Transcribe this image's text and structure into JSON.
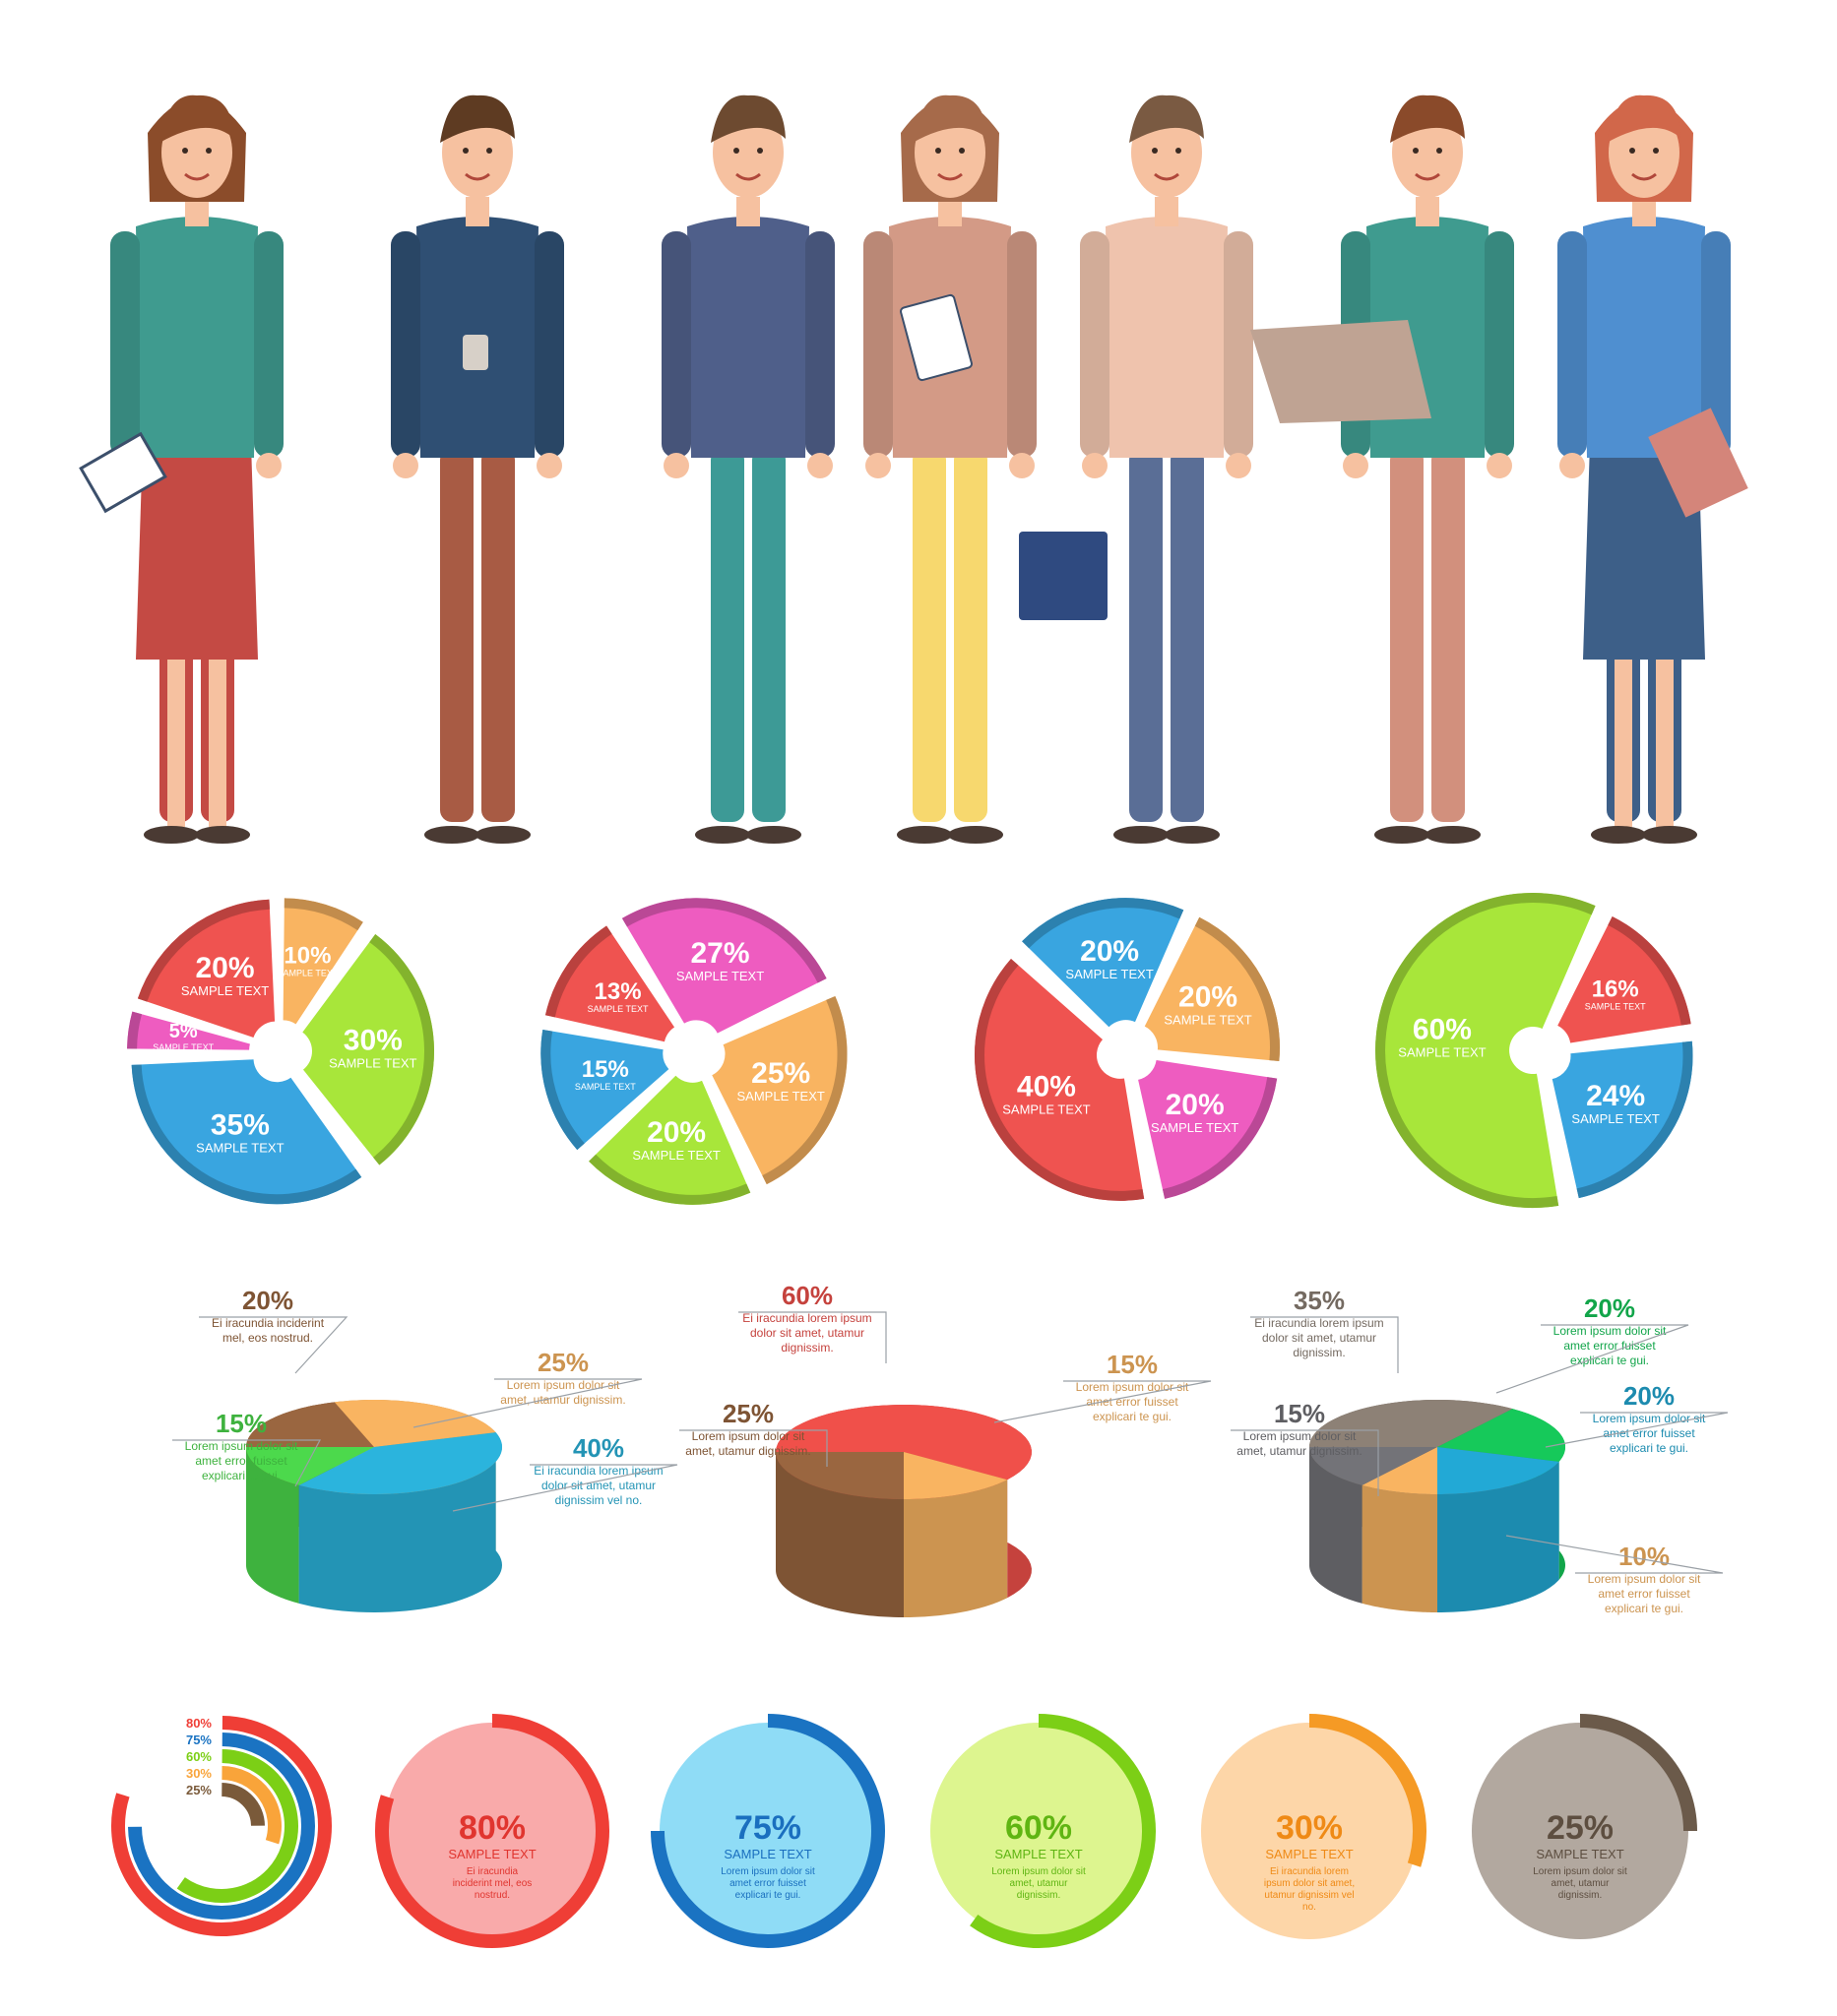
{
  "colors": {
    "red": "#ef5350",
    "red_dark": "#d32f2f",
    "orange": "#f9b461",
    "orange_dark": "#f28c18",
    "green": "#a8e63a",
    "green_dark": "#6cc51a",
    "blue": "#39a5e0",
    "blue_dark": "#1566b8",
    "pink": "#ee5cc0",
    "pink_dark": "#b7166d",
    "brown": "#9a6640",
    "brown_dark": "#6a4325",
    "grey": "#8d8176",
    "grey_dark": "#5d5249"
  },
  "people": [
    {
      "role": "woman-green-jacket",
      "skin": "#f6c1a0",
      "hair": "#8b4c2a",
      "top": "#3f9b8f",
      "bottom": "#c44a44",
      "prop": "clipboard"
    },
    {
      "role": "man-striped-sweater",
      "skin": "#f6c1a0",
      "hair": "#5e3b22",
      "top": "#2f4f73",
      "bottom": "#a85b44",
      "prop": "coffee-cup"
    },
    {
      "role": "man-suit-glasses",
      "skin": "#f6c1a0",
      "hair": "#6d4a30",
      "top": "#4f5f8a",
      "bottom": "#3d9a96",
      "prop": "none"
    },
    {
      "role": "woman-pink-jacket",
      "skin": "#f6c1a0",
      "hair": "#a66a4a",
      "top": "#d39a86",
      "bottom": "#f7d86e",
      "prop": "tablet"
    },
    {
      "role": "man-striped-vest",
      "skin": "#f6c1a0",
      "hair": "#7a5a42",
      "top": "#efc3ad",
      "bottom": "#5a6e96",
      "prop": "briefcase"
    },
    {
      "role": "man-beard-laptop",
      "skin": "#f6c1a0",
      "hair": "#8a4a2a",
      "top": "#3f9b8f",
      "bottom": "#d2907d",
      "prop": "laptop"
    },
    {
      "role": "woman-polka-blouse",
      "skin": "#f6c1a0",
      "hair": "#d1674a",
      "top": "#4f8fd0",
      "bottom": "#3d5f88",
      "prop": "folder"
    }
  ],
  "chart_data": [
    {
      "type": "pie",
      "slices": [
        {
          "value": 30,
          "label": "30%",
          "sub": "SAMPLE TEXT",
          "color": "#a8e63a"
        },
        {
          "value": 35,
          "label": "35%",
          "sub": "SAMPLE TEXT",
          "color": "#39a5e0"
        },
        {
          "value": 5,
          "label": "5%",
          "sub": "SAMPLE TEXT",
          "color": "#ee5cc0"
        },
        {
          "value": 20,
          "label": "20%",
          "sub": "SAMPLE TEXT",
          "color": "#ef5350"
        },
        {
          "value": 10,
          "label": "10%",
          "sub": "SAMPLE TEXT",
          "color": "#f9b461"
        }
      ]
    },
    {
      "type": "pie",
      "slices": [
        {
          "value": 25,
          "label": "25%",
          "sub": "SAMPLE TEXT",
          "color": "#f9b461"
        },
        {
          "value": 20,
          "label": "20%",
          "sub": "SAMPLE TEXT",
          "color": "#a8e63a"
        },
        {
          "value": 15,
          "label": "15%",
          "sub": "SAMPLE TEXT",
          "color": "#39a5e0"
        },
        {
          "value": 13,
          "label": "13%",
          "sub": "SAMPLE TEXT",
          "color": "#ef5350"
        },
        {
          "value": 27,
          "label": "27%",
          "sub": "SAMPLE TEXT",
          "color": "#ee5cc0"
        }
      ]
    },
    {
      "type": "pie",
      "slices": [
        {
          "value": 20,
          "label": "20%",
          "sub": "SAMPLE TEXT",
          "color": "#f9b461"
        },
        {
          "value": 20,
          "label": "20%",
          "sub": "SAMPLE TEXT",
          "color": "#ee5cc0"
        },
        {
          "value": 40,
          "label": "40%",
          "sub": "SAMPLE TEXT",
          "color": "#ef5350"
        },
        {
          "value": 20,
          "label": "20%",
          "sub": "SAMPLE TEXT",
          "color": "#39a5e0"
        }
      ]
    },
    {
      "type": "pie",
      "slices": [
        {
          "value": 16,
          "label": "16%",
          "sub": "SAMPLE TEXT",
          "color": "#ef5350"
        },
        {
          "value": 24,
          "label": "24%",
          "sub": "SAMPLE TEXT",
          "color": "#39a5e0"
        },
        {
          "value": 60,
          "label": "60%",
          "sub": "SAMPLE TEXT",
          "color": "#a8e63a"
        }
      ]
    },
    {
      "type": "pie",
      "style": "3d",
      "slices": [
        {
          "value": 20,
          "label": "20%",
          "desc": "Ei iracundia inciderint mel, eos nostrud.",
          "color": "#9a6640"
        },
        {
          "value": 25,
          "label": "25%",
          "desc": "Lorem ipsum dolor sit amet, utamur dignissim.",
          "color": "#f9b461"
        },
        {
          "value": 40,
          "label": "40%",
          "desc": "Ei iracundia lorem ipsum dolor sit amet, utamur dignissim vel no.",
          "color": "#2bb4dd"
        },
        {
          "value": 15,
          "label": "15%",
          "desc": "Lorem ipsum dolor sit amet error fuisset explicari te gui.",
          "color": "#4cd94c"
        }
      ]
    },
    {
      "type": "pie",
      "style": "3d",
      "slices": [
        {
          "value": 60,
          "label": "60%",
          "desc": "Ei iracundia lorem ipsum dolor sit amet, utamur dignissim.",
          "color": "#f0504a"
        },
        {
          "value": 15,
          "label": "15%",
          "desc": "Lorem ipsum dolor sit amet error fuisset explicari te gui.",
          "color": "#f9b461"
        },
        {
          "value": 25,
          "label": "25%",
          "desc": "Lorem ipsum dolor sit amet, utamur dignissim.",
          "color": "#9a6640"
        }
      ]
    },
    {
      "type": "pie",
      "style": "3d",
      "slices": [
        {
          "value": 35,
          "label": "35%",
          "desc": "Ei iracundia lorem ipsum dolor sit amet, utamur dignissim.",
          "color": "#8d8176"
        },
        {
          "value": 20,
          "label": "20%",
          "desc": "Lorem ipsum dolor sit amet error fuisset explicari te gui.",
          "color": "#16c95a"
        },
        {
          "value": 20,
          "label": "20%",
          "desc": "Lorem ipsum dolor sit amet error fuisset explicari te gui.",
          "color": "#22a9d6"
        },
        {
          "value": 10,
          "label": "10%",
          "desc": "Lorem ipsum dolor sit amet error fuisset explicari te gui.",
          "color": "#f9b461"
        },
        {
          "value": 15,
          "label": "15%",
          "desc": "Lorem ipsum dolor sit amet, utamur dignissim.",
          "color": "#737378"
        }
      ]
    },
    {
      "type": "ring",
      "style": "concentric",
      "series": [
        {
          "value": 80,
          "label": "80%",
          "color": "#ef3e36"
        },
        {
          "value": 75,
          "label": "75%",
          "color": "#1a73c2"
        },
        {
          "value": 60,
          "label": "60%",
          "color": "#7ccf16"
        },
        {
          "value": 30,
          "label": "30%",
          "color": "#f9a43a"
        },
        {
          "value": 25,
          "label": "25%",
          "color": "#7a5a3a"
        }
      ]
    },
    {
      "type": "ring",
      "series": [
        {
          "value": 80,
          "label": "80%",
          "sub": "SAMPLE TEXT",
          "desc": "Ei iracundia inciderint mel, eos nostrud.",
          "color": "#ef3e36",
          "fill": "#f9aaaa",
          "text": "#e0352f"
        },
        {
          "value": 75,
          "label": "75%",
          "sub": "SAMPLE TEXT",
          "desc": "Lorem ipsum dolor sit amet error fuisset explicari te gui.",
          "color": "#1a73c2",
          "fill": "#8fdcf6",
          "text": "#1a6fbf"
        },
        {
          "value": 60,
          "label": "60%",
          "sub": "SAMPLE TEXT",
          "desc": "Lorem ipsum dolor sit amet, utamur dignissim.",
          "color": "#7ccf16",
          "fill": "#ddf58f",
          "text": "#5fb512"
        },
        {
          "value": 30,
          "label": "30%",
          "sub": "SAMPLE TEXT",
          "desc": "Ei iracundia lorem ipsum dolor sit amet, utamur dignissim vel no.",
          "color": "#f59a25",
          "fill": "#fdd6a8",
          "text": "#ef8a16"
        },
        {
          "value": 25,
          "label": "25%",
          "sub": "SAMPLE TEXT",
          "desc": "Lorem ipsum dolor sit amet, utamur dignissim.",
          "color": "#6b5a4a",
          "fill": "#b2a89f",
          "text": "#5d4e40"
        }
      ]
    }
  ]
}
